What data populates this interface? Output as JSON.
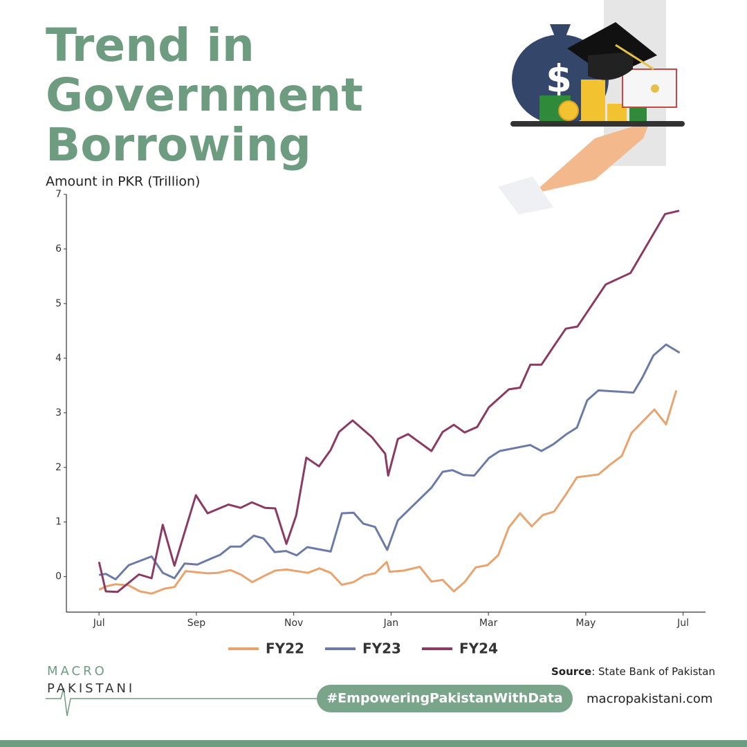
{
  "header": {
    "title": "Trend in Government Borrowing"
  },
  "chart_data": {
    "type": "line",
    "ylabel": "Amount in PKR (Trillion)",
    "xlim": [
      -0.67,
      12.46
    ],
    "xticks": [
      {
        "value": 0,
        "label": "Jul"
      },
      {
        "value": 2,
        "label": "Sep"
      },
      {
        "value": 4,
        "label": "Nov"
      },
      {
        "value": 6,
        "label": "Jan"
      },
      {
        "value": 8,
        "label": "Mar"
      },
      {
        "value": 10,
        "label": "May"
      },
      {
        "value": 12,
        "label": "Jul"
      }
    ],
    "ylim": [
      -0.65,
      7
    ],
    "yticks": [
      0,
      1,
      2,
      3,
      4,
      5,
      6,
      7
    ],
    "grid": false,
    "legend": "bottom",
    "series": [
      {
        "name": "FY22",
        "color": "#e9a36f",
        "x": [
          0,
          0.14,
          0.34,
          0.61,
          0.84,
          1.08,
          1.35,
          1.55,
          1.78,
          2.23,
          2.44,
          2.7,
          2.91,
          3.15,
          3.41,
          3.62,
          3.85,
          4.29,
          4.53,
          4.76,
          4.99,
          5.23,
          5.45,
          5.67,
          5.91,
          5.97,
          6.26,
          6.59,
          6.83,
          7.06,
          7.29,
          7.51,
          7.74,
          7.98,
          8.2,
          8.42,
          8.65,
          8.89,
          9.12,
          9.35,
          9.59,
          9.82,
          10.26,
          10.5,
          10.74,
          10.94,
          11.41,
          11.65,
          11.86
        ],
        "values": [
          -0.24,
          -0.18,
          -0.14,
          -0.16,
          -0.27,
          -0.31,
          -0.22,
          -0.19,
          0.1,
          0.06,
          0.07,
          0.12,
          0.04,
          -0.1,
          0.02,
          0.11,
          0.13,
          0.07,
          0.15,
          0.07,
          -0.15,
          -0.1,
          0.02,
          0.06,
          0.27,
          0.09,
          0.11,
          0.18,
          -0.09,
          -0.06,
          -0.27,
          -0.1,
          0.17,
          0.21,
          0.39,
          0.9,
          1.16,
          0.92,
          1.13,
          1.19,
          1.5,
          1.82,
          1.87,
          2.05,
          2.21,
          2.63,
          3.06,
          2.79,
          3.41
        ]
      },
      {
        "name": "FY23",
        "color": "#6b7ba6",
        "x": [
          0,
          0.14,
          0.34,
          0.61,
          1.08,
          1.31,
          1.55,
          1.76,
          2.02,
          2.3,
          2.49,
          2.7,
          2.91,
          3.18,
          3.38,
          3.61,
          3.84,
          4.06,
          4.28,
          4.76,
          4.99,
          5.23,
          5.43,
          5.67,
          5.92,
          6.14,
          6.83,
          7.06,
          7.26,
          7.49,
          7.71,
          8.01,
          8.23,
          8.86,
          9.09,
          9.33,
          9.59,
          9.82,
          10.03,
          10.26,
          10.98,
          11.16,
          11.39,
          11.65,
          11.93
        ],
        "values": [
          0.03,
          0.05,
          -0.05,
          0.21,
          0.37,
          0.07,
          -0.03,
          0.24,
          0.22,
          0.33,
          0.4,
          0.55,
          0.55,
          0.75,
          0.7,
          0.45,
          0.47,
          0.39,
          0.54,
          0.46,
          1.16,
          1.17,
          0.97,
          0.91,
          0.49,
          1.03,
          1.63,
          1.92,
          1.95,
          1.86,
          1.85,
          2.17,
          2.3,
          2.41,
          2.3,
          2.42,
          2.6,
          2.73,
          3.23,
          3.41,
          3.37,
          3.64,
          4.05,
          4.25,
          4.1
        ]
      },
      {
        "name": "FY24",
        "color": "#8a3a63",
        "x": [
          0,
          0.14,
          0.38,
          0.82,
          1.08,
          1.31,
          1.55,
          1.99,
          2.23,
          2.66,
          2.91,
          3.14,
          3.41,
          3.62,
          3.85,
          4.05,
          4.26,
          4.52,
          4.76,
          4.93,
          5.21,
          5.61,
          5.88,
          5.94,
          6.14,
          6.35,
          6.83,
          7.06,
          7.29,
          7.51,
          7.77,
          8.01,
          8.42,
          8.65,
          8.86,
          9.09,
          9.33,
          9.59,
          9.83,
          10.41,
          10.92,
          11.63,
          11.92
        ],
        "values": [
          0.27,
          -0.27,
          -0.28,
          0.04,
          -0.03,
          0.95,
          0.2,
          1.49,
          1.16,
          1.32,
          1.26,
          1.36,
          1.26,
          1.25,
          0.6,
          1.12,
          2.18,
          2.02,
          2.32,
          2.65,
          2.86,
          2.55,
          2.25,
          1.85,
          2.52,
          2.61,
          2.3,
          2.65,
          2.78,
          2.64,
          2.74,
          3.1,
          3.43,
          3.46,
          3.88,
          3.88,
          4.2,
          4.54,
          4.58,
          5.35,
          5.56,
          6.64,
          6.7
        ]
      }
    ]
  },
  "footer": {
    "source_label": "Source",
    "source_text": ": State Bank of Pakistan",
    "hashtag": "#EmpoweringPakistanWithData",
    "website": "macropakistani.com",
    "logo_top": "MACRO",
    "logo_bottom": "PAKISTANI"
  }
}
